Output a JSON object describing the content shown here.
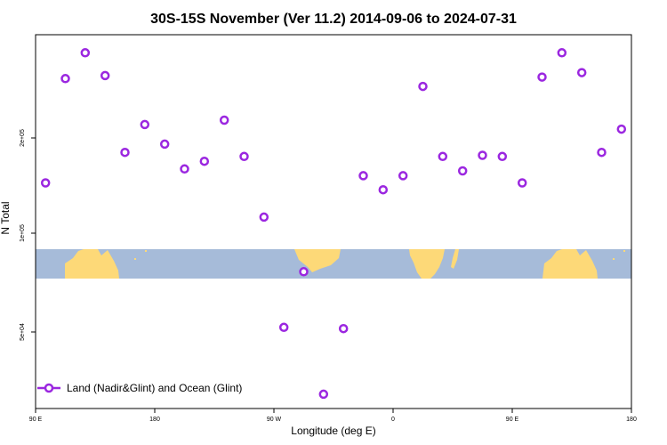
{
  "chart_data": {
    "type": "scatter",
    "title": "30S-15S November (Ver 11.2)   2014-09-06 to 2024-07-31",
    "xlabel": "Longitude (deg E)",
    "ylabel": "N Total",
    "x_tick_labels": [
      "90 E",
      "180",
      "90 W",
      "0",
      "90 E",
      "180"
    ],
    "y_tick_labels": [
      "5e+04",
      "1e+05",
      "2e+05"
    ],
    "y_tick_values": [
      50000,
      100000,
      200000
    ],
    "y_scale": "log",
    "ylim": [
      23000,
      560000
    ],
    "x_range_deg": [
      90,
      450
    ],
    "legend": {
      "label": "Land (Nadir&Glint) and Ocean (Glint)",
      "position": "bottom-left"
    },
    "colors": {
      "series": "#9b27e0",
      "ocean": "#a6bbd9",
      "land": "#fdd978"
    },
    "background_map": "world-map-strip-30S-15S",
    "series": [
      {
        "name": "Land (Nadir&Glint) and Ocean (Glint)",
        "points": [
          {
            "lon": 96,
            "n": 158000
          },
          {
            "lon": 108,
            "n": 385000
          },
          {
            "lon": 120,
            "n": 480000
          },
          {
            "lon": 132,
            "n": 395000
          },
          {
            "lon": 144,
            "n": 205000
          },
          {
            "lon": 156,
            "n": 260000
          },
          {
            "lon": 168,
            "n": 220000
          },
          {
            "lon": 180,
            "n": 178000
          },
          {
            "lon": 192,
            "n": 190000
          },
          {
            "lon": 204,
            "n": 270000
          },
          {
            "lon": 216,
            "n": 198000
          },
          {
            "lon": 228,
            "n": 118000
          },
          {
            "lon": 240,
            "n": 46000
          },
          {
            "lon": 252,
            "n": 74000
          },
          {
            "lon": 264,
            "n": 26000
          },
          {
            "lon": 276,
            "n": 45500
          },
          {
            "lon": 288,
            "n": 168000
          },
          {
            "lon": 300,
            "n": 149000
          },
          {
            "lon": 312,
            "n": 168000
          },
          {
            "lon": 324,
            "n": 360000
          },
          {
            "lon": 336,
            "n": 198000
          },
          {
            "lon": 348,
            "n": 175000
          },
          {
            "lon": 360,
            "n": 200000
          },
          {
            "lon": 372,
            "n": 198000
          },
          {
            "lon": 384,
            "n": 158000
          },
          {
            "lon": 396,
            "n": 390000
          },
          {
            "lon": 408,
            "n": 480000
          },
          {
            "lon": 420,
            "n": 405000
          },
          {
            "lon": 432,
            "n": 205000
          },
          {
            "lon": 444,
            "n": 250000
          }
        ]
      }
    ]
  }
}
